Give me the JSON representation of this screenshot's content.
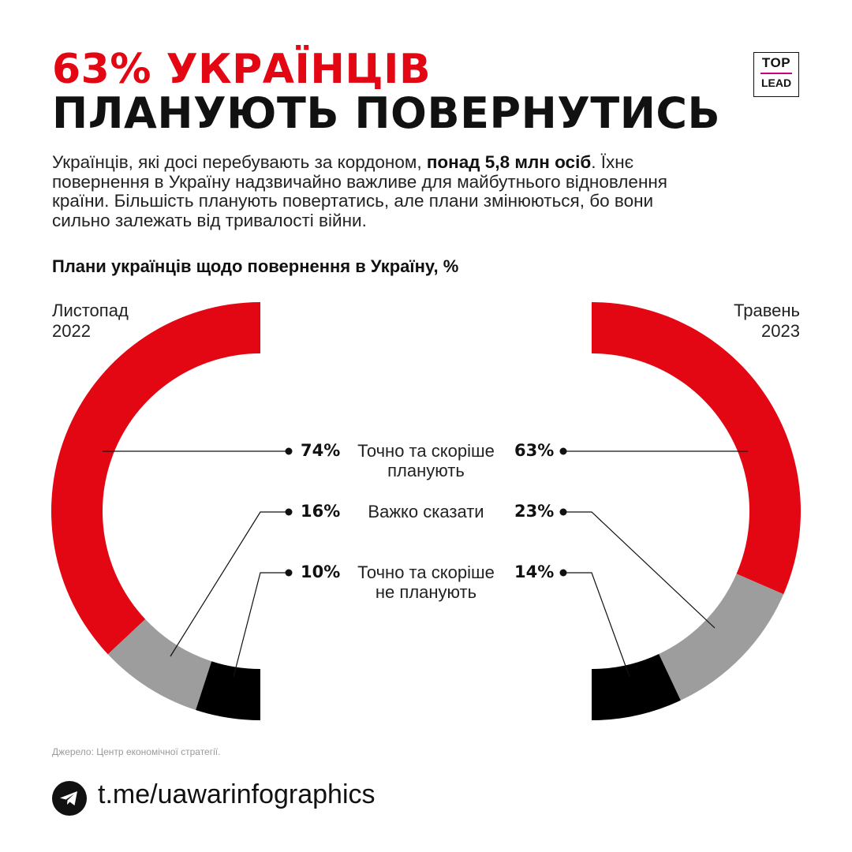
{
  "header": {
    "title_line1": "63% УКРАЇНЦІВ",
    "title_line2": "ПЛАНУЮТЬ ПОВЕРНУТИСЬ",
    "logo_top": "TOP",
    "logo_bottom": "LEAD"
  },
  "intro": {
    "text_before": "Українців, які досі перебувають за кордоном, ",
    "text_bold": "понад 5,8 млн осіб",
    "text_after": ". Їхнє повернення в Україну надзвичайно важливе для майбутнього відновлення країни. Більшість планують повертатись, але плани змінюються, бо вони сильно залежать від тривалості війни."
  },
  "chart_data": {
    "type": "pie",
    "title": "Плани українців щодо повернення в Україну, %",
    "categories": [
      "Точно та скоріше планують",
      "Важко сказати",
      "Точно та скоріше не планують"
    ],
    "series": [
      {
        "name": "Листопад 2022",
        "values": [
          74,
          16,
          10
        ],
        "value_labels": [
          "74%",
          "16%",
          "10%"
        ]
      },
      {
        "name": "Травень 2023",
        "values": [
          63,
          23,
          14
        ],
        "value_labels": [
          "63%",
          "23%",
          "14%"
        ]
      }
    ],
    "colors": [
      "#e30613",
      "#9d9d9d",
      "#000000"
    ]
  },
  "periods": {
    "left_line1": "Листопад",
    "left_line2": "2022",
    "right_line1": "Травень",
    "right_line2": "2023"
  },
  "labels": {
    "cat1_line1": "Точно та скоріше",
    "cat1_line2": "планують",
    "cat2": "Важко сказати",
    "cat3_line1": "Точно та скоріше",
    "cat3_line2": "не планують"
  },
  "footer": {
    "source": "Джерело: Центр економічної стратегії.",
    "link": "t.me/uawarinfographics",
    "icon": "telegram-icon"
  }
}
